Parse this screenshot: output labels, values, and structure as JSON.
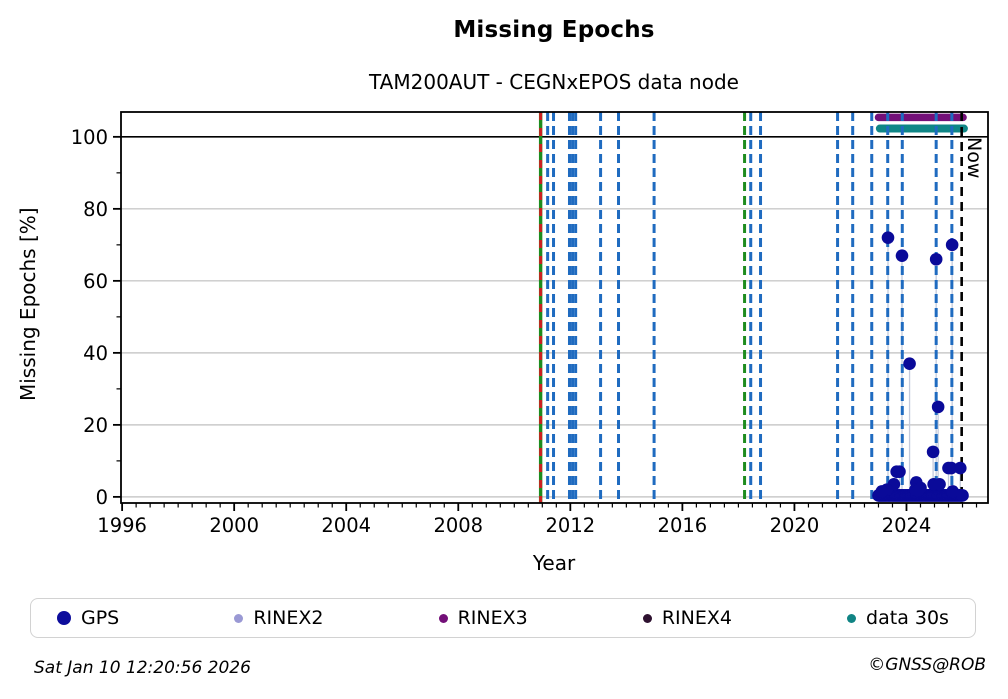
{
  "title": "Missing Epochs",
  "subtitle": "TAM200AUT - CEGNxEPOS data node",
  "now_label": "Now",
  "footer": {
    "left": "Sat Jan 10 12:20:56 2026",
    "right": "©GNSS@ROB"
  },
  "legend": [
    {
      "label": "GPS",
      "color": "#0d0d9c",
      "size": 14
    },
    {
      "label": "RINEX2",
      "color": "#9a99d4",
      "size": 9
    },
    {
      "label": "RINEX3",
      "color": "#730f78",
      "size": 9
    },
    {
      "label": "RINEX4",
      "color": "#2e1130",
      "size": 9
    },
    {
      "label": "data 30s",
      "color": "#108484",
      "size": 9
    }
  ],
  "chart_data": {
    "type": "scatter",
    "title": "Missing Epochs",
    "subtitle": "TAM200AUT - CEGNxEPOS data node",
    "xlabel": "Year",
    "ylabel": "Missing Epochs [%]",
    "xlim": [
      1995.96,
      2026.91
    ],
    "ylim": [
      -1.7,
      106.9
    ],
    "x_major_ticks": [
      1996,
      2000,
      2004,
      2008,
      2012,
      2016,
      2020,
      2024
    ],
    "x_minor_step_years": 0.5,
    "y_major_ticks": [
      0,
      20,
      40,
      60,
      80,
      100
    ],
    "y_minor_ticks": [
      10,
      30,
      50,
      70,
      90
    ],
    "grid_y": [
      0,
      20,
      40,
      60,
      80
    ],
    "hline_y": 100,
    "colors": {
      "gps_point": "#0a0a99",
      "blue_event": "#1f6bc0",
      "green_event": "#1e8c1e",
      "red_event": "#cc2020",
      "rinex3_band": "#730f78",
      "data30s_band": "#0f8686",
      "now_line": "#000000",
      "grid": "#c9c9c9",
      "stem": "#c4cbdc"
    },
    "event_lines": {
      "blue_dashed_years": [
        2011.19,
        2011.4,
        2011.97,
        2012.08,
        2012.19,
        2013.08,
        2013.72,
        2014.99,
        2018.44,
        2018.79,
        2021.54,
        2022.08,
        2022.76,
        2023.33,
        2023.85,
        2025.06,
        2025.62
      ],
      "green_solid_years": [
        2010.94
      ],
      "red_dashed_years": [
        2010.94
      ],
      "green_dashed_years": [
        2018.22
      ],
      "now_year": 2025.97
    },
    "bands": [
      {
        "name": "RINEX3",
        "y_pct": 105.4,
        "from": 2023.0,
        "to": 2026.02
      },
      {
        "name": "data 30s",
        "y_pct": 102.3,
        "from": 2023.05,
        "to": 2026.05
      }
    ],
    "gps_points": [
      [
        2023.34,
        72
      ],
      [
        2023.84,
        67
      ],
      [
        2025.06,
        66
      ],
      [
        2025.63,
        70
      ],
      [
        2024.11,
        37
      ],
      [
        2025.13,
        25
      ],
      [
        2024.95,
        12.5
      ],
      [
        2023.65,
        7
      ],
      [
        2023.75,
        7
      ],
      [
        2025.5,
        8
      ],
      [
        2025.6,
        8
      ],
      [
        2025.92,
        8
      ],
      [
        2023.55,
        3.5
      ],
      [
        2024.35,
        4
      ],
      [
        2024.5,
        2.5
      ],
      [
        2024.97,
        3.5
      ],
      [
        2025.18,
        3.5
      ],
      [
        2023.3,
        2
      ],
      [
        2023.12,
        1.5
      ],
      [
        2024.32,
        2
      ],
      [
        2024.42,
        1.8
      ],
      [
        2025.65,
        1.5
      ]
    ],
    "gps_baseline": {
      "from": 2023.0,
      "to": 2026.0,
      "step": 0.03,
      "value_pct": 0.4
    }
  }
}
